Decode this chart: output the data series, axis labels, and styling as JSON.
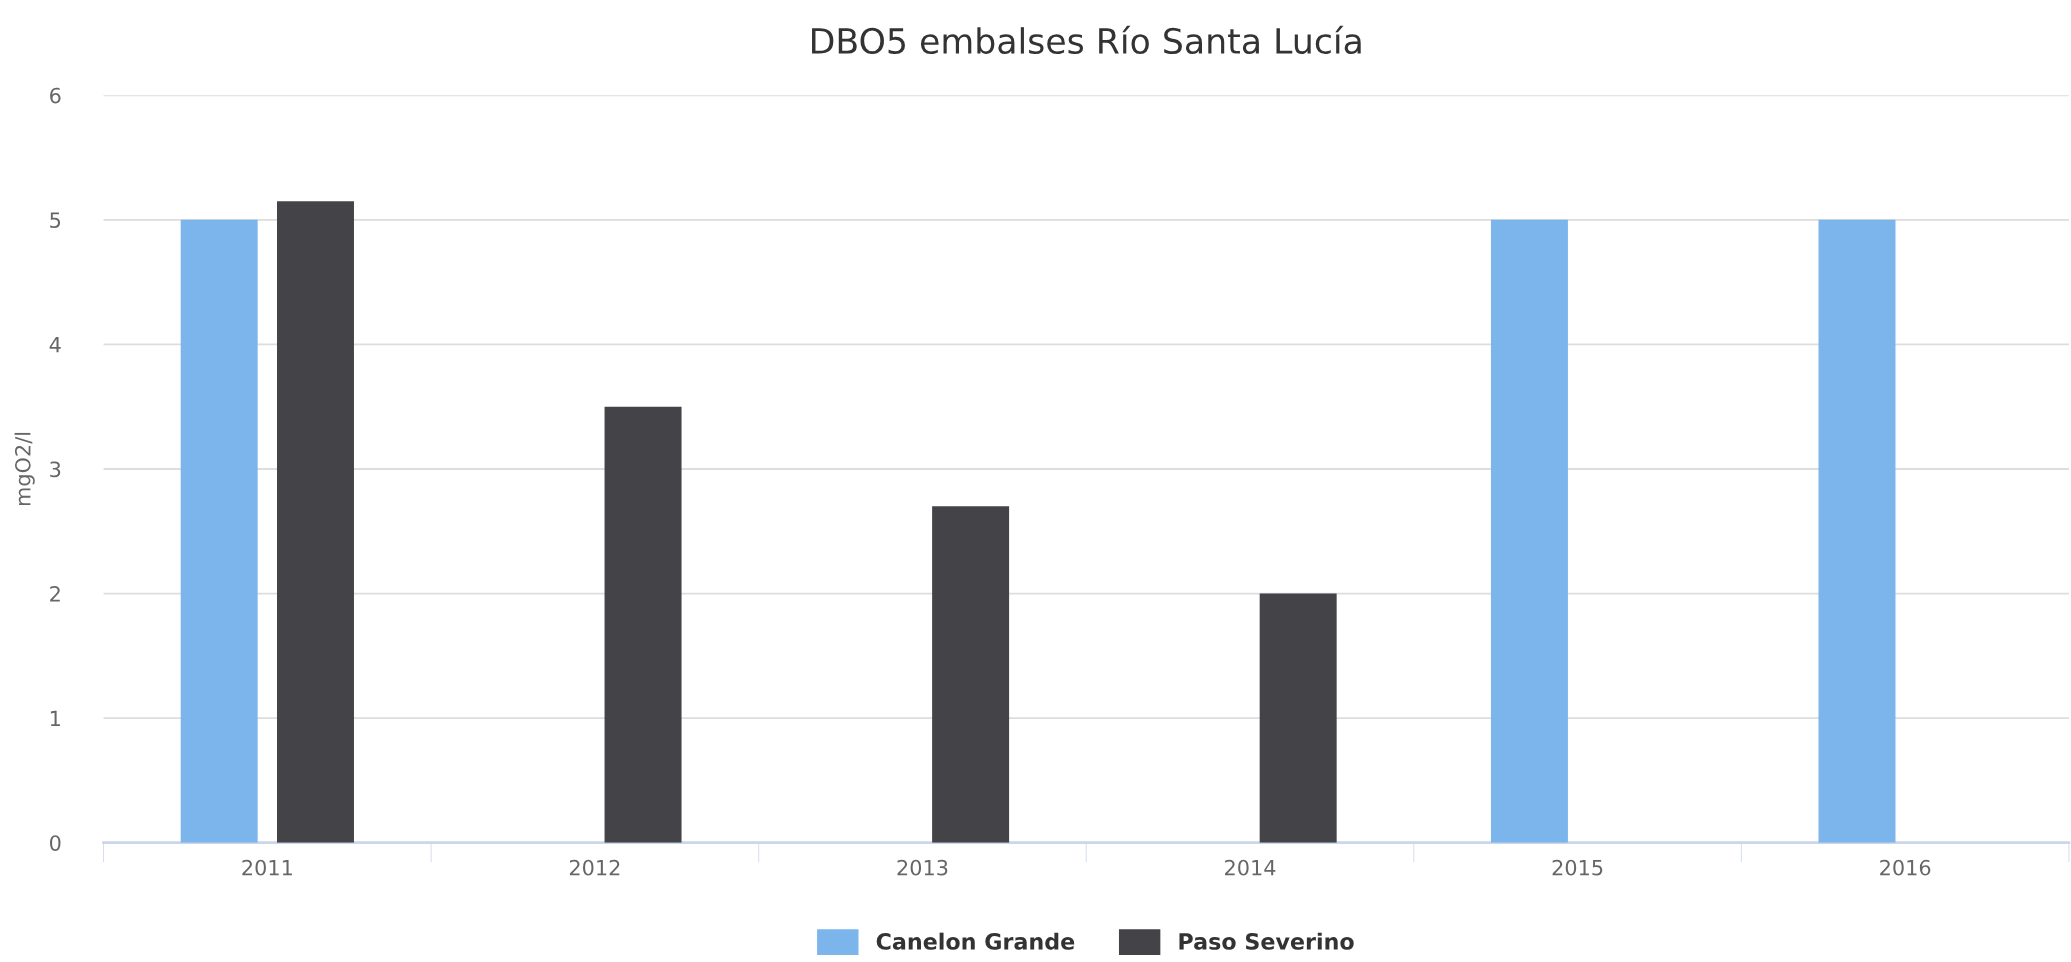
{
  "chart_data": {
    "type": "bar",
    "title": "DBO5 embalses Río Santa Lucía",
    "ylabel": "mgO2/l",
    "categories": [
      "2011",
      "2012",
      "2013",
      "2014",
      "2015",
      "2016"
    ],
    "series": [
      {
        "name": "Canelon Grande",
        "color": "#7cb5ec",
        "values": [
          5.0,
          null,
          null,
          null,
          5.0,
          5.0
        ]
      },
      {
        "name": "Paso Severino",
        "color": "#434348",
        "values": [
          5.15,
          3.5,
          2.7,
          2.0,
          null,
          null
        ]
      }
    ],
    "ylim": [
      0,
      6
    ],
    "yticks": [
      0,
      1,
      2,
      3,
      4,
      5,
      6
    ],
    "grid": "y",
    "legend": "bottom"
  }
}
